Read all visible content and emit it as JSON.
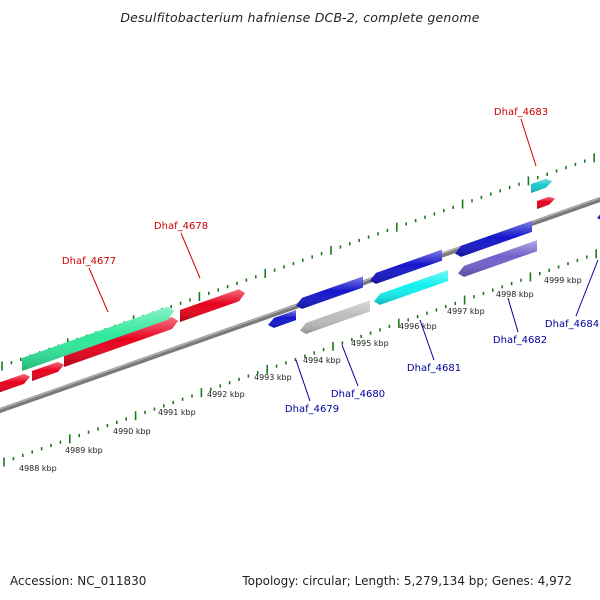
{
  "title": "Desulfitobacterium hafniense DCB-2, complete genome",
  "footer": {
    "accession": "Accession: NC_011830",
    "summary": "Topology: circular; Length: 5,279,134 bp; Genes: 4,972"
  },
  "colors": {
    "forward_label": "#cc0000",
    "reverse_label": "#000099",
    "backbone": "#888888",
    "ticks": "#1a7a1a"
  },
  "ticks": [
    {
      "label": "4988 kbp"
    },
    {
      "label": "4989 kbp"
    },
    {
      "label": "4990 kbp"
    },
    {
      "label": "4991 kbp"
    },
    {
      "label": "4992 kbp"
    },
    {
      "label": "4993 kbp"
    },
    {
      "label": "4994 kbp"
    },
    {
      "label": "4995 kbp"
    },
    {
      "label": "4996 kbp"
    },
    {
      "label": "4997 kbp"
    },
    {
      "label": "4998 kbp"
    },
    {
      "label": "4999 kbp"
    }
  ],
  "gene_labels": [
    {
      "text": "Dhaf_4677",
      "strand": "forward"
    },
    {
      "text": "Dhaf_4678",
      "strand": "forward"
    },
    {
      "text": "Dhaf_4683",
      "strand": "forward"
    },
    {
      "text": "Dhaf_4679",
      "strand": "reverse"
    },
    {
      "text": "Dhaf_4680",
      "strand": "reverse"
    },
    {
      "text": "Dhaf_4681",
      "strand": "reverse"
    },
    {
      "text": "Dhaf_4682",
      "strand": "reverse"
    },
    {
      "text": "Dhaf_4684",
      "strand": "reverse"
    }
  ],
  "genes": [
    {
      "strand": "forward",
      "color": "#e8001c"
    },
    {
      "strand": "forward",
      "color": "#e8001c"
    },
    {
      "strand": "forward",
      "color": "#e8001c"
    },
    {
      "strand": "forward",
      "color": "#e8001c"
    },
    {
      "strand": "forward",
      "color": "#2ee89a"
    },
    {
      "strand": "forward",
      "color": "#e8001c"
    },
    {
      "strand": "forward",
      "color": "#e8001c"
    },
    {
      "strand": "forward",
      "color": "#19c8cc"
    },
    {
      "strand": "reverse",
      "color": "#1515cc"
    },
    {
      "strand": "reverse",
      "color": "#1515cc"
    },
    {
      "strand": "reverse",
      "color": "#bcbcbc"
    },
    {
      "strand": "reverse",
      "color": "#1515cc"
    },
    {
      "strand": "reverse",
      "color": "#10f0f0"
    },
    {
      "strand": "reverse",
      "color": "#1515cc"
    },
    {
      "strand": "reverse",
      "color": "#7060cc"
    },
    {
      "strand": "reverse",
      "color": "#1515cc"
    }
  ]
}
